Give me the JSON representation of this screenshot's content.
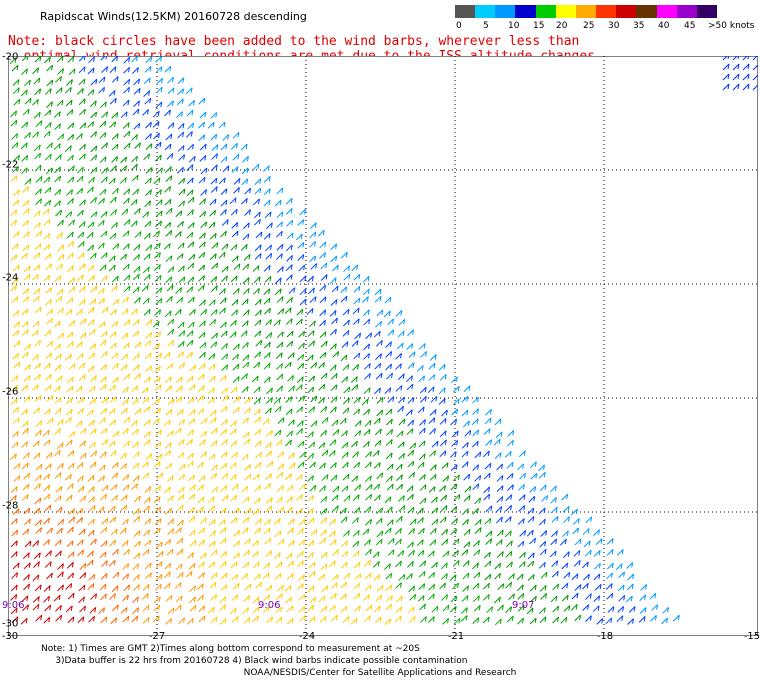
{
  "header": {
    "title": "Rapidscat Winds(12.5KM) 20160728 descending"
  },
  "note": {
    "line1": "Note: black circles have been added to the wind barbs, wherever less than",
    "line2": "optimal wind retrieval conditions are met due to the ISS altitude changes."
  },
  "colorbar": {
    "unit": "knots",
    "labels": [
      "0",
      "5",
      "10",
      "15",
      "20",
      "25",
      "30",
      "35",
      "40",
      "45",
      ">50 knots"
    ],
    "colors": [
      "#555555",
      "#00ccff",
      "#0099ff",
      "#0000cc",
      "#00cc00",
      "#ffff00",
      "#ffaa00",
      "#ff3300",
      "#cc0000",
      "#663300",
      "#ff00ff",
      "#9900cc",
      "#330066"
    ]
  },
  "map": {
    "lat_labels": [
      "-20",
      "-22",
      "-24",
      "-26",
      "-28",
      "-30"
    ],
    "lon_labels": [
      "-30",
      "-27",
      "-24",
      "-21",
      "-18",
      "-15"
    ],
    "time_labels": [
      "9:06",
      "9:06",
      "9:07"
    ]
  },
  "footer": {
    "line1": "Note: 1) Times are GMT 2)Times along bottom correspond to measurement at ~20S",
    "line2": "3)Data buffer is 22 hrs from 20160728 4) Black wind barbs indicate possible contamination",
    "credit": "NOAA/NESDIS/Center for Satellite Applications and Research"
  }
}
